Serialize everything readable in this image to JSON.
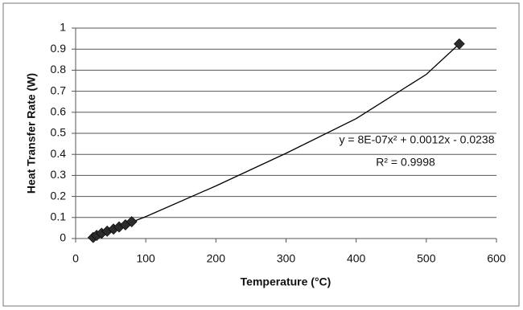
{
  "chart_data": {
    "type": "scatter",
    "x_label": "Temperature (°C)",
    "y_label": "Heat Transfer Rate (W)",
    "equation": "y = 8E-07x² + 0.0012x - 0.0238",
    "r_squared": "R² = 0.9998",
    "x": [
      25,
      30,
      37,
      45,
      54,
      62,
      71,
      80,
      547
    ],
    "values": [
      0.005,
      0.015,
      0.025,
      0.035,
      0.045,
      0.055,
      0.065,
      0.08,
      0.925
    ],
    "color": "#2b2b2b",
    "trendline": {
      "x": [
        25,
        100,
        200,
        300,
        400,
        500,
        547
      ],
      "y": [
        0.007,
        0.104,
        0.25,
        0.405,
        0.57,
        0.78,
        0.925
      ],
      "color": "#000000"
    },
    "xlim": [
      0,
      600
    ],
    "xticks": [
      0,
      100,
      200,
      300,
      400,
      500,
      600
    ],
    "ylim": [
      0,
      1
    ],
    "yticks": [
      0,
      0.1,
      0.2,
      0.3,
      0.4,
      0.5,
      0.6,
      0.7,
      0.8,
      0.9,
      1
    ],
    "grid": true
  }
}
